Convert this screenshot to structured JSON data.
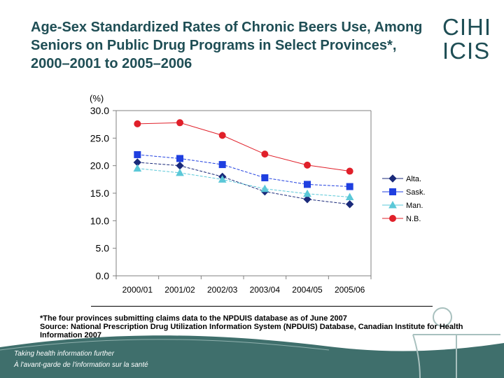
{
  "title": "Age-Sex Standardized Rates of Chronic Beers Use, Among Seniors on Public Drug Programs in Select Provinces*, 2000–2001 to 2005–2006",
  "logo": {
    "line1": "CIHI",
    "line2": "ICIS"
  },
  "footnote": {
    "line1": "*The four provinces submitting claims data to the NPDUIS database as of June 2007",
    "line2": "Source: National Prescription Drug Utilization Information System (NPDUIS) Database, Canadian Institute for Health Information 2007"
  },
  "tagline": {
    "en": "Taking health information further",
    "fr": "À l'avant-garde de l'information sur la santé"
  },
  "colors": {
    "title": "#1f4e55",
    "alta": "#1a2a7a",
    "sask": "#1f3fe0",
    "man": "#5bc8d8",
    "nb": "#e0202a",
    "band": "#3f6f6c"
  },
  "chart_data": {
    "type": "line",
    "ylabel": "(%)",
    "ylim": [
      0,
      30
    ],
    "yticks": [
      "0.0",
      "5.0",
      "10.0",
      "15.0",
      "20.0",
      "25.0",
      "30.0"
    ],
    "categories": [
      "2000/01",
      "2001/02",
      "2002/03",
      "2003/04",
      "2004/05",
      "2005/06"
    ],
    "legend_position": "right",
    "grid": false,
    "series": [
      {
        "name": "Alta.",
        "marker": "diamond",
        "color": "#1a2a7a",
        "values": [
          20.6,
          20.0,
          18.0,
          15.3,
          13.9,
          13.0
        ]
      },
      {
        "name": "Sask.",
        "marker": "square",
        "color": "#1f3fe0",
        "values": [
          22.0,
          21.3,
          20.2,
          17.8,
          16.6,
          16.2
        ]
      },
      {
        "name": "Man.",
        "marker": "triangle",
        "color": "#5bc8d8",
        "values": [
          19.5,
          18.7,
          17.5,
          15.8,
          14.9,
          14.3
        ]
      },
      {
        "name": "N.B.",
        "marker": "circle",
        "color": "#e0202a",
        "values": [
          27.6,
          27.8,
          25.5,
          22.1,
          20.1,
          19.0
        ]
      }
    ]
  }
}
